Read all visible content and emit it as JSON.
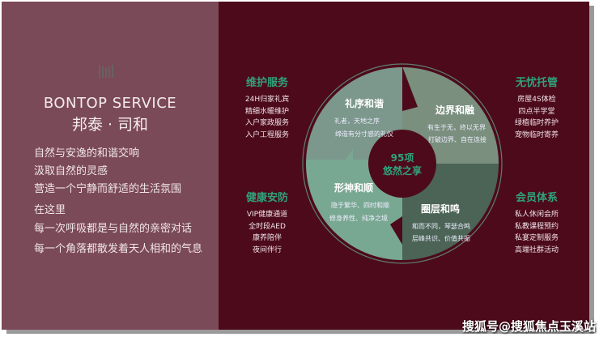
{
  "brand": {
    "title_en": "BONTOP SERVICE",
    "title_cn": "邦泰 · 司和"
  },
  "intro": [
    "自然与安逸的和谐交响",
    "汲取自然的灵感",
    "营造一个宁静而舒适的生活氛围",
    "在这里",
    "每一次呼吸都是与自然的亲密对话",
    "每一个角落都散发着天人相和的气息"
  ],
  "columns": [
    {
      "title": "维护服务",
      "items": [
        "24H归家礼宾",
        "精细水暖维护",
        "入户家政服务",
        "入户工程服务"
      ]
    },
    {
      "title": "健康安防",
      "items": [
        "VIP健康通道",
        "全时段AED",
        "康养陪伴",
        "夜间伴行"
      ]
    },
    {
      "title": "无忧托管",
      "items": [
        "房屋4S体检",
        "四点半学堂",
        "绿植临时养护",
        "宠物临时寄养"
      ]
    },
    {
      "title": "会员体系",
      "items": [
        "私人休闲会所",
        "私教课程预约",
        "私宴定制服务",
        "高端社群活动"
      ]
    }
  ],
  "wheel": {
    "center": [
      "95项",
      "悠然之享"
    ],
    "segments": [
      {
        "title": "礼序和谐",
        "lines": [
          "礼者，天地之序",
          "缔造有分寸感的礼仪"
        ],
        "color": "#7c978c"
      },
      {
        "title": "边界和融",
        "lines": [
          "有生于无，终以无界",
          "打破边界、自在连接"
        ],
        "color": "#7a8f7e"
      },
      {
        "title": "形神和顺",
        "lines": [
          "隐于繁华、四时和顺",
          "修身养性、纯净之境"
        ],
        "color": "#79a892"
      },
      {
        "title": "圈层和鸣",
        "lines": [
          "和而不同，琴瑟合鸣",
          "层峰共识、价值共振"
        ],
        "color": "#4b6456"
      }
    ]
  },
  "colors": {
    "background": "#4d0a1b",
    "panel": "#7b4a58",
    "accent": "#2fa27c"
  },
  "watermark": "搜狐号@搜狐焦点玉溪站"
}
